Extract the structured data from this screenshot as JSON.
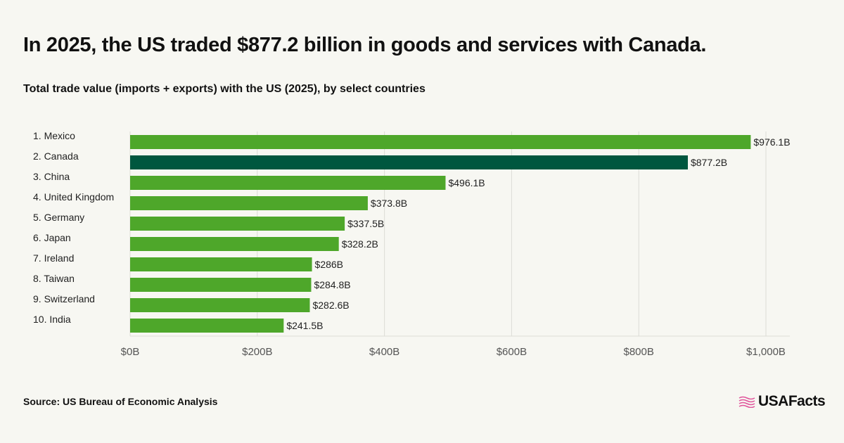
{
  "header": {
    "title": "In 2025, the US traded $877.2 billion in goods and services with Canada.",
    "subtitle": "Total trade value (imports + exports) with the US (2025), by select countries"
  },
  "footer": {
    "source": "Source: US Bureau of Economic Analysis",
    "logo_text": "USAFacts",
    "logo_icon": "us-flag-icon",
    "logo_color": "#e0559b"
  },
  "colors": {
    "bar": "#4ea72a",
    "highlight": "#00573f",
    "grid": "#dcdcd6"
  },
  "chart_data": {
    "type": "bar",
    "orientation": "horizontal",
    "categories": [
      "1. Mexico",
      "2. Canada",
      "3. China",
      "4. United Kingdom",
      "5. Germany",
      "6. Japan",
      "7. Ireland",
      "8. Taiwan",
      "9. Switzerland",
      "10. India"
    ],
    "values": [
      976.1,
      877.2,
      496.1,
      373.8,
      337.5,
      328.2,
      286,
      284.8,
      282.6,
      241.5
    ],
    "value_labels": [
      "$976.1B",
      "$877.2B",
      "$496.1B",
      "$373.8B",
      "$337.5B",
      "$328.2B",
      "$286B",
      "$284.8B",
      "$282.6B",
      "$241.5B"
    ],
    "highlight_index": 1,
    "xlim": [
      0,
      1000
    ],
    "xticks": [
      0,
      200,
      400,
      600,
      800,
      1000
    ],
    "xtick_labels": [
      "$0B",
      "$200B",
      "$400B",
      "$600B",
      "$800B",
      "$1,000B"
    ],
    "grid": true
  }
}
